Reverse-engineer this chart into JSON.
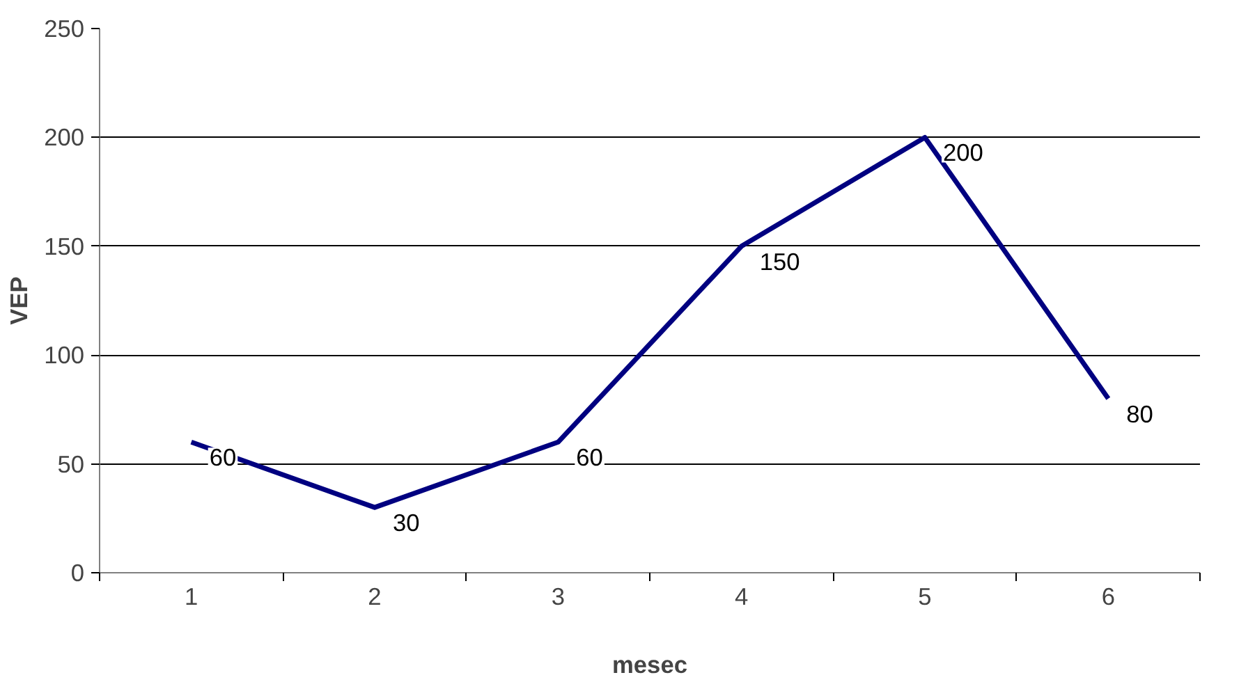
{
  "chart_data": {
    "type": "line",
    "xlabel": "mesec",
    "ylabel": "VEP",
    "categories": [
      "1",
      "2",
      "3",
      "4",
      "5",
      "6"
    ],
    "values": [
      60,
      30,
      60,
      150,
      200,
      80
    ],
    "color": "#000080",
    "ylim": [
      0,
      250
    ],
    "yticks": [
      0,
      50,
      100,
      150,
      200,
      250
    ],
    "grid": "y",
    "marker": "none",
    "line_style": "solid",
    "data_labels": true
  }
}
